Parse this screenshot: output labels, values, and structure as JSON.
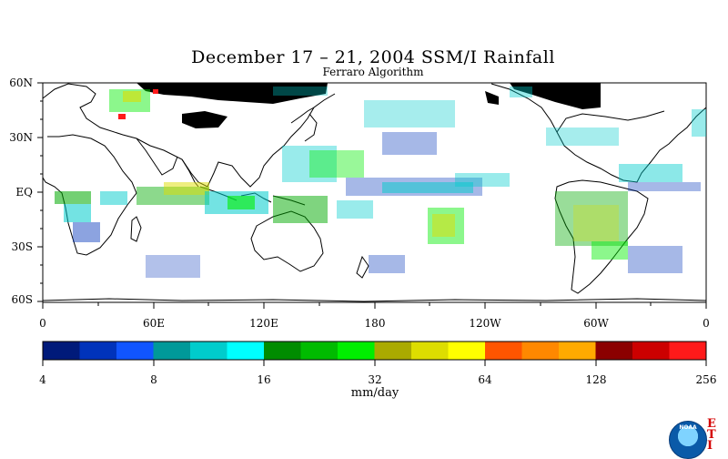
{
  "map": {
    "title": "December 17 – 21, 2004 SSM/I Rainfall",
    "subtitle": "Ferraro Algorithm",
    "lat_labels": [
      "60N",
      "30N",
      "EQ",
      "30S",
      "60S"
    ],
    "lon_labels": [
      "0",
      "60E",
      "120E",
      "180",
      "120W",
      "60W",
      "0"
    ]
  },
  "colorbar": {
    "colors": [
      "#001a7a",
      "#0033bb",
      "#1155ff",
      "#009999",
      "#00cccc",
      "#00ffff",
      "#008c00",
      "#00bb00",
      "#00ee00",
      "#aaaa00",
      "#dddd00",
      "#ffff00",
      "#ff5500",
      "#ff8800",
      "#ffaa00",
      "#8b0000",
      "#cc0000",
      "#ff1a1a"
    ],
    "tick_labels": [
      "4",
      "8",
      "16",
      "32",
      "64",
      "128",
      "256"
    ],
    "unit": "mm/day"
  },
  "logo": {
    "name": "NOAA",
    "corner_letters": [
      "E",
      "T",
      "I"
    ]
  }
}
